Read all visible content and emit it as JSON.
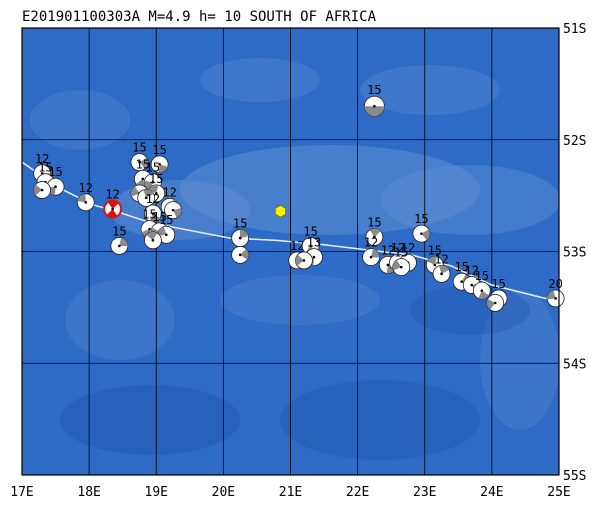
{
  "header": {
    "title": "E201901100303A M=4.9 h= 10 SOUTH OF AFRICA"
  },
  "map": {
    "lon_range": [
      17,
      25
    ],
    "lat_range": [
      -55,
      -51
    ],
    "lon_ticks": [
      {
        "lon": 17,
        "label": "17E"
      },
      {
        "lon": 18,
        "label": "18E"
      },
      {
        "lon": 19,
        "label": "19E"
      },
      {
        "lon": 20,
        "label": "20E"
      },
      {
        "lon": 21,
        "label": "21E"
      },
      {
        "lon": 22,
        "label": "22E"
      },
      {
        "lon": 23,
        "label": "23E"
      },
      {
        "lon": 24,
        "label": "24E"
      },
      {
        "lon": 25,
        "label": "25E"
      }
    ],
    "lat_ticks": [
      {
        "lat": -51,
        "label": "51S"
      },
      {
        "lat": -52,
        "label": "52S"
      },
      {
        "lat": -53,
        "label": "53S"
      },
      {
        "lat": -54,
        "label": "54S"
      },
      {
        "lat": -55,
        "label": "55S"
      }
    ],
    "colors": {
      "ocean": "#2d6bc6",
      "ocean_light": "#5f90d4",
      "ocean_deep": "#2158b0",
      "grid": "#000000",
      "ridge": "#e8eef6",
      "mech_shade": "#8a8a8a",
      "highlight": "#e01010",
      "epicenter": "#ffee00"
    },
    "epicenter": {
      "lon": 20.85,
      "lat": -52.64
    },
    "ridge_line": [
      [
        17.0,
        -52.2
      ],
      [
        17.55,
        -52.43
      ],
      [
        18.05,
        -52.58
      ],
      [
        18.5,
        -52.66
      ],
      [
        18.9,
        -52.74
      ],
      [
        19.4,
        -52.8
      ],
      [
        20.1,
        -52.88
      ],
      [
        20.8,
        -52.9
      ],
      [
        21.5,
        -52.94
      ],
      [
        22.2,
        -52.99
      ],
      [
        22.8,
        -53.03
      ],
      [
        23.4,
        -53.13
      ],
      [
        24.0,
        -53.3
      ],
      [
        24.8,
        -53.42
      ],
      [
        25.0,
        -53.4
      ]
    ],
    "events": [
      {
        "lon": 17.3,
        "lat": -52.3,
        "label": "12"
      },
      {
        "lon": 17.35,
        "lat": -52.38,
        "label": "15"
      },
      {
        "lon": 17.5,
        "lat": -52.42,
        "label": "15"
      },
      {
        "lon": 17.3,
        "lat": -52.45,
        "label": ""
      },
      {
        "lon": 17.95,
        "lat": -52.56,
        "label": "12"
      },
      {
        "lon": 18.35,
        "lat": -52.62,
        "label": "12",
        "highlight": true
      },
      {
        "lon": 18.45,
        "lat": -52.95,
        "label": "15"
      },
      {
        "lon": 18.75,
        "lat": -52.2,
        "label": "15"
      },
      {
        "lon": 19.05,
        "lat": -52.22,
        "label": "15"
      },
      {
        "lon": 18.8,
        "lat": -52.35,
        "label": "15"
      },
      {
        "lon": 18.95,
        "lat": -52.38,
        "label": "15"
      },
      {
        "lon": 18.75,
        "lat": -52.48,
        "label": ""
      },
      {
        "lon": 19.0,
        "lat": -52.48,
        "label": "15"
      },
      {
        "lon": 18.85,
        "lat": -52.52,
        "label": ""
      },
      {
        "lon": 19.2,
        "lat": -52.6,
        "label": "12"
      },
      {
        "lon": 19.25,
        "lat": -52.63,
        "label": ""
      },
      {
        "lon": 18.95,
        "lat": -52.66,
        "label": "12"
      },
      {
        "lon": 18.9,
        "lat": -52.8,
        "label": "15"
      },
      {
        "lon": 19.05,
        "lat": -52.82,
        "label": "15"
      },
      {
        "lon": 19.15,
        "lat": -52.85,
        "label": "15"
      },
      {
        "lon": 18.95,
        "lat": -52.9,
        "label": ""
      },
      {
        "lon": 20.25,
        "lat": -52.88,
        "label": "15"
      },
      {
        "lon": 20.25,
        "lat": -53.03,
        "label": ""
      },
      {
        "lon": 21.1,
        "lat": -53.08,
        "label": "12"
      },
      {
        "lon": 21.3,
        "lat": -52.95,
        "label": "15"
      },
      {
        "lon": 21.35,
        "lat": -53.05,
        "label": "13"
      },
      {
        "lon": 21.2,
        "lat": -53.08,
        "label": ""
      },
      {
        "lon": 22.25,
        "lat": -51.7,
        "label": "15",
        "gray": true
      },
      {
        "lon": 22.25,
        "lat": -52.87,
        "label": "15"
      },
      {
        "lon": 22.2,
        "lat": -53.05,
        "label": "12"
      },
      {
        "lon": 22.95,
        "lat": -52.84,
        "label": "15"
      },
      {
        "lon": 22.45,
        "lat": -53.12,
        "label": "12"
      },
      {
        "lon": 22.6,
        "lat": -53.1,
        "label": "12"
      },
      {
        "lon": 22.75,
        "lat": -53.1,
        "label": "12"
      },
      {
        "lon": 22.65,
        "lat": -53.14,
        "label": "15"
      },
      {
        "lon": 23.15,
        "lat": -53.12,
        "label": "15"
      },
      {
        "lon": 23.25,
        "lat": -53.2,
        "label": "12"
      },
      {
        "lon": 23.55,
        "lat": -53.27,
        "label": "15"
      },
      {
        "lon": 23.7,
        "lat": -53.3,
        "label": "12"
      },
      {
        "lon": 23.85,
        "lat": -53.35,
        "label": "15"
      },
      {
        "lon": 24.1,
        "lat": -53.42,
        "label": "15"
      },
      {
        "lon": 24.05,
        "lat": -53.46,
        "label": ""
      },
      {
        "lon": 24.95,
        "lat": -53.42,
        "label": "20"
      }
    ]
  }
}
